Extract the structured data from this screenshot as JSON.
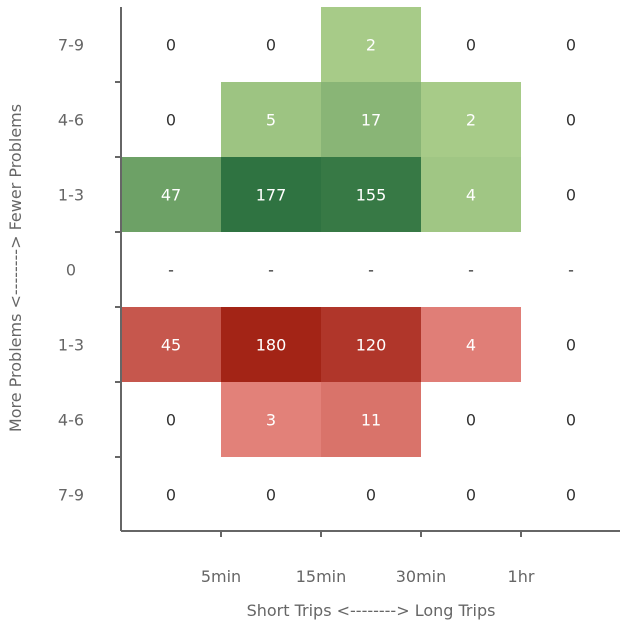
{
  "chart_data": {
    "type": "heatmap",
    "title": "",
    "xlabel": "Short Trips <--------> Long Trips",
    "ylabel": "More Problems <--------> Fewer Problems",
    "x_tick_labels": [
      "5min",
      "15min",
      "30min",
      "1hr"
    ],
    "y_categories": [
      "7-9",
      "4-6",
      "1-3",
      "0",
      "1-3",
      "4-6",
      "7-9"
    ],
    "columns": 5,
    "grid": false,
    "colors": {
      "positive_base": "#b9d993",
      "positive_dark": "#2e7240",
      "negative_base": "#ee928c",
      "negative_dark": "#a32416",
      "text_on_color": "#ffffff",
      "text_on_white": "#333333",
      "axis": "#666666"
    },
    "rows": [
      {
        "category": "7-9",
        "sign": "positive",
        "values": [
          "0",
          "0",
          "2",
          "0",
          "0"
        ]
      },
      {
        "category": "4-6",
        "sign": "positive",
        "values": [
          "0",
          "5",
          "17",
          "2",
          "0"
        ]
      },
      {
        "category": "1-3",
        "sign": "positive",
        "values": [
          "47",
          "177",
          "155",
          "4",
          "0"
        ]
      },
      {
        "category": "0",
        "sign": "neutral",
        "values": [
          "-",
          "-",
          "-",
          "-",
          "-"
        ]
      },
      {
        "category": "1-3",
        "sign": "negative",
        "values": [
          "45",
          "180",
          "120",
          "4",
          "0"
        ]
      },
      {
        "category": "4-6",
        "sign": "negative",
        "values": [
          "0",
          "3",
          "11",
          "0",
          "0"
        ]
      },
      {
        "category": "7-9",
        "sign": "negative",
        "values": [
          "0",
          "0",
          "0",
          "0",
          "0"
        ]
      }
    ]
  }
}
